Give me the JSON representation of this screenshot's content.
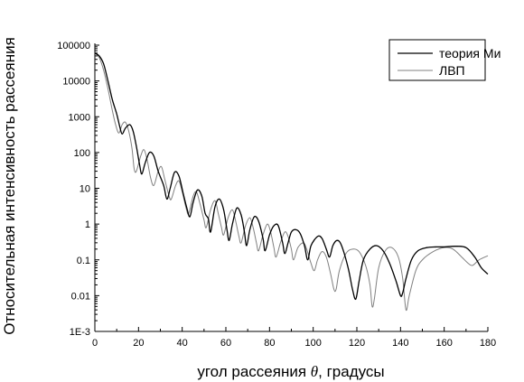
{
  "chart_data": {
    "type": "line",
    "xlabel_prefix": "угол рассеяния ",
    "xlabel_symbol": "θ",
    "xlabel_suffix": ", градусы",
    "ylabel": "Относительная интенсивность рассеяния",
    "xlim": [
      0,
      180
    ],
    "ylim": [
      0.001,
      100000
    ],
    "yscale": "log",
    "xticks": [
      0,
      20,
      40,
      60,
      80,
      100,
      120,
      140,
      160,
      180
    ],
    "xtick_labels": [
      "0",
      "20",
      "40",
      "60",
      "80",
      "100",
      "120",
      "140",
      "160",
      "180"
    ],
    "yticks": [
      0.001,
      0.01,
      0.1,
      1,
      10,
      100,
      1000,
      10000,
      100000
    ],
    "ytick_labels": [
      "1E-3",
      "0.01",
      "0.1",
      "1",
      "10",
      "100",
      "1000",
      "10000",
      "100000"
    ],
    "grid": false,
    "legend_position": "top-right",
    "series": [
      {
        "name": "теория Ми",
        "color": "#000000",
        "points": [
          [
            0,
            60000
          ],
          [
            2,
            50000
          ],
          [
            4,
            30000
          ],
          [
            6,
            10000
          ],
          [
            8,
            3000
          ],
          [
            10,
            1200
          ],
          [
            11.5,
            500
          ],
          [
            12.5,
            330
          ],
          [
            14,
            480
          ],
          [
            16,
            600
          ],
          [
            17.5,
            400
          ],
          [
            19,
            150
          ],
          [
            20.5,
            45
          ],
          [
            21.5,
            25
          ],
          [
            23,
            50
          ],
          [
            25,
            100
          ],
          [
            27,
            80
          ],
          [
            29,
            30
          ],
          [
            31.5,
            12
          ],
          [
            33,
            5
          ],
          [
            34.5,
            10
          ],
          [
            36.5,
            28
          ],
          [
            38.5,
            22
          ],
          [
            40.5,
            7
          ],
          [
            42,
            3
          ],
          [
            43.5,
            1.6
          ],
          [
            45,
            4
          ],
          [
            47,
            9
          ],
          [
            49,
            6
          ],
          [
            50.5,
            2
          ],
          [
            52,
            1.4
          ],
          [
            53,
            0.6
          ],
          [
            55,
            3
          ],
          [
            57,
            5
          ],
          [
            59,
            2.5
          ],
          [
            60.5,
            0.7
          ],
          [
            61.5,
            0.35
          ],
          [
            63,
            1
          ],
          [
            65,
            2.8
          ],
          [
            67,
            1.8
          ],
          [
            68.5,
            0.6
          ],
          [
            69.5,
            0.25
          ],
          [
            71,
            0.7
          ],
          [
            73,
            1.6
          ],
          [
            75,
            1.2
          ],
          [
            77,
            0.4
          ],
          [
            78,
            0.18
          ],
          [
            80,
            0.5
          ],
          [
            82,
            0.9
          ],
          [
            84,
            0.9
          ],
          [
            86,
            0.3
          ],
          [
            87,
            0.15
          ],
          [
            88.5,
            0.3
          ],
          [
            90,
            0.6
          ],
          [
            92,
            0.7
          ],
          [
            94,
            0.55
          ],
          [
            96,
            0.25
          ],
          [
            97.5,
            0.1
          ],
          [
            99,
            0.25
          ],
          [
            102,
            0.45
          ],
          [
            104,
            0.4
          ],
          [
            106,
            0.2
          ],
          [
            107.5,
            0.12
          ],
          [
            109,
            0.25
          ],
          [
            111,
            0.35
          ],
          [
            113,
            0.25
          ],
          [
            116,
            0.06
          ],
          [
            118,
            0.015
          ],
          [
            119.5,
            0.008
          ],
          [
            121,
            0.025
          ],
          [
            123,
            0.1
          ],
          [
            126,
            0.2
          ],
          [
            129,
            0.25
          ],
          [
            132,
            0.18
          ],
          [
            135,
            0.08
          ],
          [
            138,
            0.025
          ],
          [
            140,
            0.01
          ],
          [
            141,
            0.012
          ],
          [
            142.5,
            0.03
          ],
          [
            145,
            0.1
          ],
          [
            148,
            0.18
          ],
          [
            152,
            0.22
          ],
          [
            156,
            0.23
          ],
          [
            160,
            0.23
          ],
          [
            165,
            0.24
          ],
          [
            170,
            0.22
          ],
          [
            174,
            0.12
          ],
          [
            177,
            0.06
          ],
          [
            180,
            0.04
          ]
        ]
      },
      {
        "name": "ЛВП",
        "color": "#808080",
        "points": [
          [
            0,
            60000
          ],
          [
            2,
            45000
          ],
          [
            4,
            20000
          ],
          [
            6,
            6000
          ],
          [
            8,
            1500
          ],
          [
            9.5,
            600
          ],
          [
            11,
            350
          ],
          [
            12.5,
            600
          ],
          [
            14,
            700
          ],
          [
            15.5,
            400
          ],
          [
            17,
            130
          ],
          [
            18,
            35
          ],
          [
            19,
            30
          ],
          [
            21,
            80
          ],
          [
            22.5,
            120
          ],
          [
            24,
            60
          ],
          [
            25.5,
            20
          ],
          [
            27,
            12
          ],
          [
            29,
            30
          ],
          [
            30.5,
            40
          ],
          [
            32,
            18
          ],
          [
            34,
            6
          ],
          [
            35,
            5
          ],
          [
            37,
            12
          ],
          [
            38.5,
            16
          ],
          [
            40,
            8
          ],
          [
            42,
            2.5
          ],
          [
            43,
            2
          ],
          [
            45,
            6
          ],
          [
            46.5,
            8
          ],
          [
            48,
            4
          ],
          [
            50,
            1.3
          ],
          [
            51,
            0.8
          ],
          [
            53,
            2.5
          ],
          [
            55,
            4.5
          ],
          [
            56.5,
            2
          ],
          [
            58,
            0.8
          ],
          [
            59,
            0.5
          ],
          [
            61,
            1.5
          ],
          [
            63,
            2.5
          ],
          [
            64.5,
            1.2
          ],
          [
            66,
            0.45
          ],
          [
            67,
            0.3
          ],
          [
            69,
            0.9
          ],
          [
            71,
            1.5
          ],
          [
            72.5,
            0.8
          ],
          [
            74,
            0.3
          ],
          [
            75,
            0.18
          ],
          [
            77,
            0.5
          ],
          [
            79,
            1
          ],
          [
            80.5,
            0.6
          ],
          [
            82,
            0.22
          ],
          [
            83,
            0.12
          ],
          [
            85,
            0.3
          ],
          [
            87,
            0.6
          ],
          [
            88.5,
            0.45
          ],
          [
            90,
            0.2
          ],
          [
            91,
            0.1
          ],
          [
            93,
            0.22
          ],
          [
            95.5,
            0.3
          ],
          [
            97,
            0.2
          ],
          [
            99,
            0.08
          ],
          [
            100.5,
            0.05
          ],
          [
            102,
            0.1
          ],
          [
            104,
            0.17
          ],
          [
            106,
            0.12
          ],
          [
            108,
            0.04
          ],
          [
            109.5,
            0.015
          ],
          [
            110.5,
            0.015
          ],
          [
            112,
            0.05
          ],
          [
            115,
            0.15
          ],
          [
            118,
            0.2
          ],
          [
            121,
            0.17
          ],
          [
            124,
            0.07
          ],
          [
            126,
            0.02
          ],
          [
            127,
            0.005
          ],
          [
            128,
            0.008
          ],
          [
            130,
            0.06
          ],
          [
            133,
            0.18
          ],
          [
            136,
            0.22
          ],
          [
            139,
            0.12
          ],
          [
            141,
            0.03
          ],
          [
            142.5,
            0.004
          ],
          [
            144,
            0.01
          ],
          [
            147,
            0.05
          ],
          [
            150,
            0.1
          ],
          [
            155,
            0.17
          ],
          [
            160,
            0.22
          ],
          [
            164,
            0.2
          ],
          [
            168,
            0.12
          ],
          [
            171,
            0.08
          ],
          [
            173,
            0.07
          ],
          [
            176,
            0.1
          ],
          [
            180,
            0.13
          ]
        ]
      }
    ]
  }
}
